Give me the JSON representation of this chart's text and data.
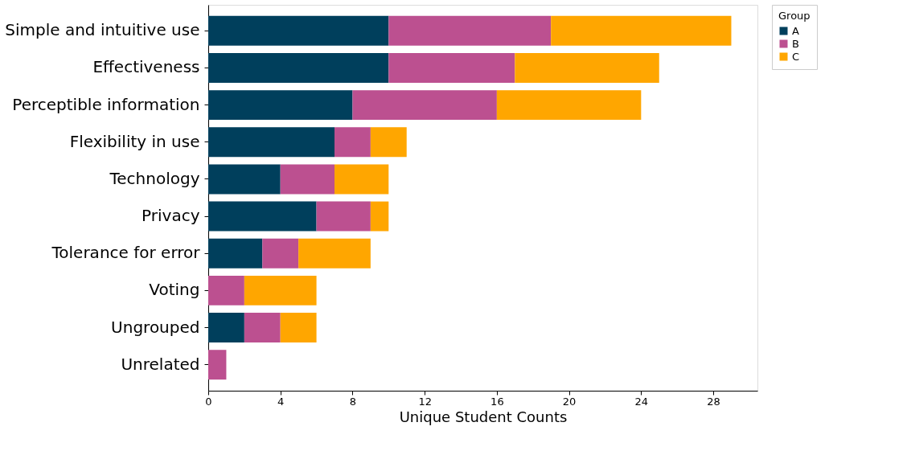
{
  "chart_data": {
    "type": "bar",
    "orientation": "horizontal",
    "stacked": true,
    "xlabel": "Unique Student Counts",
    "legend_title": "Group",
    "legend": "top right",
    "categories": [
      "Simple and intuitive use",
      "Effectiveness",
      "Perceptible information",
      "Flexibility in use",
      "Technology",
      "Privacy",
      "Tolerance for error",
      "Voting",
      "Ungrouped",
      "Unrelated"
    ],
    "series": [
      {
        "name": "A",
        "color": "#003f5c",
        "values": [
          10,
          10,
          8,
          7,
          4,
          6,
          3,
          0,
          2,
          0
        ]
      },
      {
        "name": "B",
        "color": "#bc5090",
        "values": [
          9,
          7,
          8,
          2,
          3,
          3,
          2,
          2,
          2,
          1
        ]
      },
      {
        "name": "C",
        "color": "#ffa600",
        "values": [
          10,
          8,
          8,
          2,
          3,
          1,
          4,
          4,
          2,
          0
        ]
      }
    ],
    "xlim": [
      0,
      30.45
    ],
    "xticks": [
      0,
      4,
      8,
      12,
      16,
      20,
      24,
      28
    ],
    "grid": false
  }
}
